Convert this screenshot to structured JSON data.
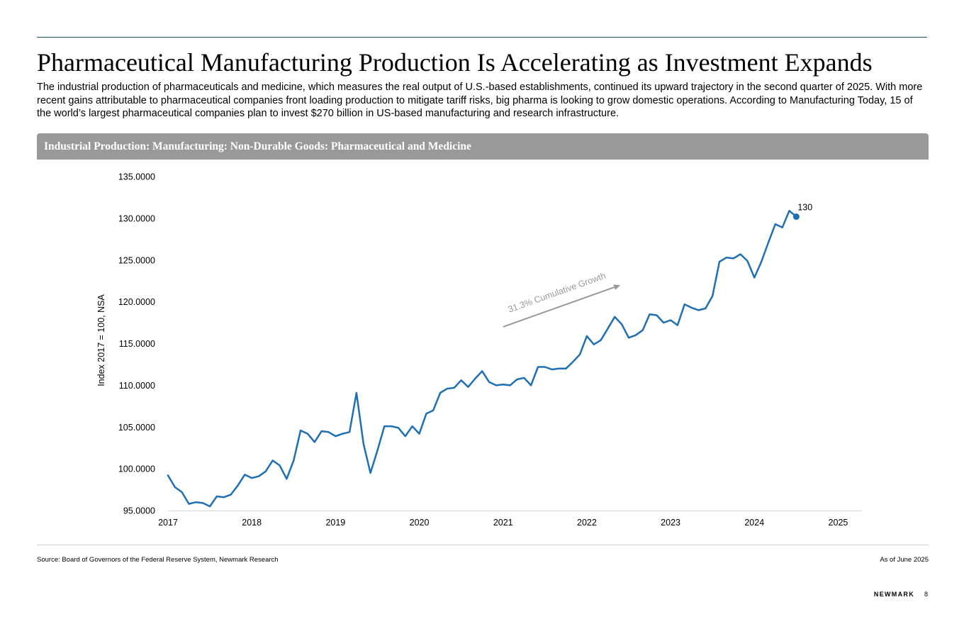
{
  "page": {
    "title": "Pharmaceutical Manufacturing Production Is Accelerating as Investment Expands",
    "intro": "The industrial production of pharmaceuticals and medicine, which measures the real output of U.S.-based establishments, continued its upward trajectory in the second quarter of 2025. With more recent gains attributable to pharmaceutical companies front loading production to mitigate tariff risks, big pharma is looking to grow domestic operations. According to Manufacturing Today, 15 of the world’s largest pharmaceutical companies plan to invest $270 billion in US-based manufacturing and research infrastructure.",
    "source": "Source: Board of Governors of the Federal Reserve System, Newmark Research",
    "as_of": "As of June 2025",
    "brand": "NEWMARK",
    "page_number": "8"
  },
  "chart_data": {
    "type": "line",
    "title": "Industrial Production: Manufacturing: Non-Durable Goods: Pharmaceutical and Medicine",
    "xlabel": "",
    "ylabel": "Index 2017 = 100, NSA",
    "x_start": "2017-01",
    "x_frequency": "monthly",
    "xlim": [
      2017.0,
      2025.25
    ],
    "ylim": [
      95,
      135
    ],
    "y_ticks": [
      95,
      100,
      105,
      110,
      115,
      120,
      125,
      130,
      135
    ],
    "y_tick_labels": [
      "95.0000",
      "100.0000",
      "105.0000",
      "110.0000",
      "115.0000",
      "120.0000",
      "125.0000",
      "130.0000",
      "135.0000"
    ],
    "x_ticks": [
      2017,
      2018,
      2019,
      2020,
      2021,
      2022,
      2023,
      2024,
      2025
    ],
    "x_tick_labels": [
      "2017",
      "2018",
      "2019",
      "2020",
      "2021",
      "2022",
      "2023",
      "2024",
      "2025"
    ],
    "grid": false,
    "series": [
      {
        "name": "Pharmaceutical and Medicine",
        "color": "#1f6fb4",
        "values": [
          99.2,
          97.8,
          97.2,
          95.8,
          96.0,
          95.9,
          95.5,
          96.7,
          96.6,
          96.9,
          98.0,
          99.3,
          98.9,
          99.1,
          99.7,
          101.0,
          100.4,
          98.8,
          101.0,
          104.6,
          104.2,
          103.2,
          104.5,
          104.4,
          103.9,
          104.2,
          104.4,
          109.1,
          103.0,
          99.5,
          102.2,
          105.1,
          105.1,
          104.9,
          103.9,
          105.1,
          104.2,
          106.6,
          107.0,
          109.1,
          109.6,
          109.7,
          110.6,
          109.8,
          110.8,
          111.7,
          110.4,
          110.0,
          110.1,
          110.0,
          110.7,
          110.9,
          110.0,
          112.2,
          112.2,
          111.9,
          112.0,
          112.0,
          112.8,
          113.7,
          115.9,
          114.9,
          115.4,
          116.8,
          118.2,
          117.3,
          115.7,
          116.0,
          116.6,
          118.5,
          118.4,
          117.5,
          117.8,
          117.2,
          119.7,
          119.3,
          119.0,
          119.2,
          120.7,
          124.8,
          125.3,
          125.2,
          125.7,
          124.9,
          122.9,
          124.8,
          127.1,
          129.3,
          128.9,
          130.9,
          130.2
        ]
      }
    ],
    "last_point_label": "130",
    "annotation": {
      "text": "31.3% Cumulative Growth",
      "from": [
        2021.0,
        117.0
      ],
      "to": [
        2022.4,
        122.0
      ]
    }
  }
}
